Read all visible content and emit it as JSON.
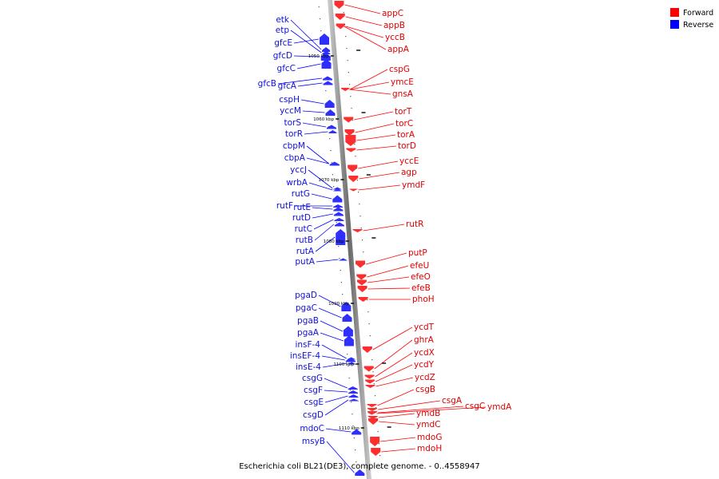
{
  "caption": "Escherichia coli BL21(DE3), complete genome. - 0..4558947",
  "legend": {
    "forward": {
      "label": "Forward",
      "color": "#ff0000"
    },
    "reverse": {
      "label": "Reverse",
      "color": "#0000ff"
    }
  },
  "ticks": [
    "1050 kbp",
    "1060 kbp",
    "1070 kbp",
    "1080 kbp",
    "1090 kbp",
    "1100 kbp",
    "1110 kbp"
  ],
  "forward_genes": [
    "appC",
    "appB",
    "yccB",
    "appA",
    "cspG",
    "ymcE",
    "gnsA",
    "torT",
    "torC",
    "torA",
    "torD",
    "yccE",
    "agp",
    "ymdF",
    "rutR",
    "putP",
    "efeU",
    "efeO",
    "efeB",
    "phoH",
    "ycdT",
    "ghrA",
    "ycdX",
    "ycdY",
    "ycdZ",
    "csgB",
    "csgA",
    "csgC",
    "ymdA",
    "ymdB",
    "ymdC",
    "mdoG",
    "mdoH"
  ],
  "reverse_genes": [
    "etk",
    "etp",
    "gfcE",
    "gfcD",
    "gfcC",
    "gfcB",
    "gfcA",
    "cspH",
    "yccM",
    "torS",
    "torR",
    "cbpM",
    "cbpA",
    "yccJ",
    "wrbA",
    "rutG",
    "rutF",
    "rutE",
    "rutD",
    "rutC",
    "rutB",
    "rutA",
    "putA",
    "pgaD",
    "pgaC",
    "pgaB",
    "pgaA",
    "insF-4",
    "insEF-4",
    "insE-4",
    "csgG",
    "csgF",
    "csgE",
    "csgD",
    "mdoC",
    "msyB"
  ]
}
